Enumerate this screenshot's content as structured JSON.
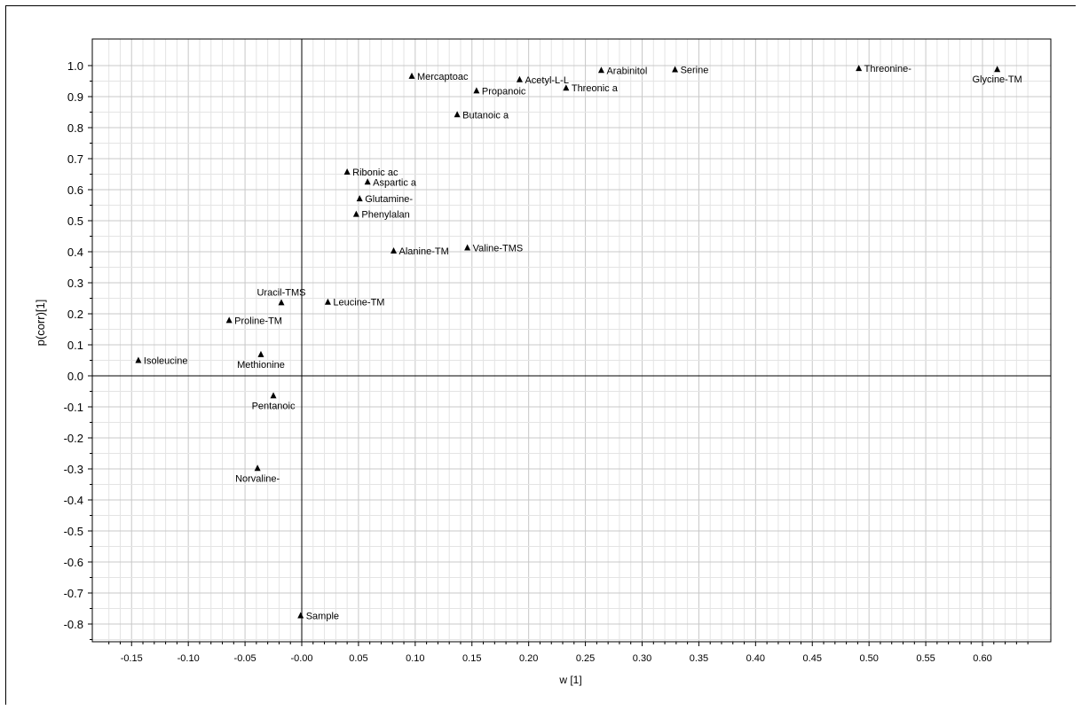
{
  "chart_data": {
    "type": "scatter",
    "title": "",
    "xlabel": "w [1]",
    "ylabel": "p(corr)[1]",
    "xlim": [
      -0.18,
      0.65
    ],
    "ylim": [
      -0.85,
      1.05
    ],
    "xticks": [
      -0.15,
      -0.1,
      -0.05,
      0.0,
      0.05,
      0.1,
      0.15,
      0.2,
      0.25,
      0.3,
      0.35,
      0.4,
      0.45,
      0.5,
      0.55,
      0.6
    ],
    "xtick_labels": [
      "-0.15",
      "-0.10",
      "-0.05",
      "-0.00",
      "0.05",
      "0.10",
      "0.15",
      "0.20",
      "0.25",
      "0.30",
      "0.35",
      "0.40",
      "0.45",
      "0.50",
      "0.55",
      "0.60"
    ],
    "yticks": [
      1.0,
      0.9,
      0.8,
      0.7,
      0.6,
      0.5,
      0.4,
      0.3,
      0.2,
      0.1,
      0.0,
      -0.1,
      -0.2,
      -0.3,
      -0.4,
      -0.5,
      -0.6,
      -0.7,
      -0.8
    ],
    "ytick_labels": [
      "1.0",
      "0.9",
      "0.8",
      "0.7",
      "0.6",
      "0.5",
      "0.4",
      "0.3",
      "0.2",
      "0.1",
      "0.0",
      "-0.1",
      "-0.2",
      "-0.3",
      "-0.4",
      "-0.5",
      "-0.6",
      "-0.7",
      "-0.8"
    ],
    "grid": true,
    "marker": "triangle",
    "marker_color": "#000000",
    "points": [
      {
        "label": "Mercaptoac",
        "x": 0.097,
        "y": 0.966,
        "pos": "right"
      },
      {
        "label": "Acetyl-L-L",
        "x": 0.192,
        "y": 0.955,
        "pos": "right"
      },
      {
        "label": "Arabinitol",
        "x": 0.264,
        "y": 0.985,
        "pos": "right"
      },
      {
        "label": "Serine",
        "x": 0.329,
        "y": 0.987,
        "pos": "right"
      },
      {
        "label": "Threonine-",
        "x": 0.491,
        "y": 0.991,
        "pos": "right"
      },
      {
        "label": "Glycine-TM",
        "x": 0.613,
        "y": 0.988,
        "pos": "below"
      },
      {
        "label": "Propanoic",
        "x": 0.154,
        "y": 0.919,
        "pos": "right"
      },
      {
        "label": "Threonic a",
        "x": 0.233,
        "y": 0.928,
        "pos": "right"
      },
      {
        "label": "Butanoic a",
        "x": 0.137,
        "y": 0.842,
        "pos": "right"
      },
      {
        "label": "Ribonic ac",
        "x": 0.04,
        "y": 0.657,
        "pos": "right"
      },
      {
        "label": "Aspartic a",
        "x": 0.058,
        "y": 0.625,
        "pos": "right"
      },
      {
        "label": "Glutamine-",
        "x": 0.051,
        "y": 0.571,
        "pos": "right"
      },
      {
        "label": "Phenylalan",
        "x": 0.048,
        "y": 0.521,
        "pos": "right"
      },
      {
        "label": "Alanine-TM",
        "x": 0.081,
        "y": 0.403,
        "pos": "right"
      },
      {
        "label": "Valine-TMS",
        "x": 0.146,
        "y": 0.413,
        "pos": "right"
      },
      {
        "label": "Uracil-TMS",
        "x": -0.018,
        "y": 0.236,
        "pos": "above"
      },
      {
        "label": "Leucine-TM",
        "x": 0.023,
        "y": 0.238,
        "pos": "right"
      },
      {
        "label": "Proline-TM",
        "x": -0.064,
        "y": 0.179,
        "pos": "right"
      },
      {
        "label": "Isoleucine",
        "x": -0.144,
        "y": 0.05,
        "pos": "right"
      },
      {
        "label": "Methionine",
        "x": -0.036,
        "y": 0.069,
        "pos": "below"
      },
      {
        "label": "Pentanoic",
        "x": -0.025,
        "y": -0.064,
        "pos": "below"
      },
      {
        "label": "Norvaline-",
        "x": -0.039,
        "y": -0.298,
        "pos": "below"
      },
      {
        "label": "Sample",
        "x": -0.001,
        "y": -0.773,
        "pos": "right"
      }
    ]
  }
}
